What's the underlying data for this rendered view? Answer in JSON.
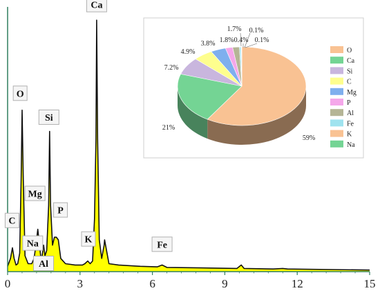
{
  "chart_data": [
    {
      "type": "line",
      "xlim": [
        0,
        15
      ],
      "ylim": [
        0,
        100
      ],
      "x_ticks": [
        "0",
        "3",
        "6",
        "9",
        "12",
        "15"
      ],
      "series_color": "#ffff00",
      "outline_color": "#111111",
      "axis_color": "#2f7f5f",
      "spectrum": [
        [
          0,
          2
        ],
        [
          0.12,
          5
        ],
        [
          0.2,
          9
        ],
        [
          0.27,
          5
        ],
        [
          0.35,
          2.5
        ],
        [
          0.42,
          3
        ],
        [
          0.5,
          7
        ],
        [
          0.56,
          35
        ],
        [
          0.6,
          61
        ],
        [
          0.65,
          35
        ],
        [
          0.72,
          6
        ],
        [
          0.85,
          3
        ],
        [
          1.0,
          3
        ],
        [
          1.1,
          5
        ],
        [
          1.2,
          12
        ],
        [
          1.25,
          16
        ],
        [
          1.3,
          12
        ],
        [
          1.38,
          5
        ],
        [
          1.43,
          6
        ],
        [
          1.49,
          10
        ],
        [
          1.55,
          6
        ],
        [
          1.62,
          8
        ],
        [
          1.7,
          25
        ],
        [
          1.74,
          53
        ],
        [
          1.78,
          25
        ],
        [
          1.86,
          10
        ],
        [
          1.94,
          13
        ],
        [
          2.02,
          13
        ],
        [
          2.1,
          12
        ],
        [
          2.2,
          5
        ],
        [
          2.4,
          3
        ],
        [
          2.8,
          2.5
        ],
        [
          3.1,
          2.5
        ],
        [
          3.2,
          3
        ],
        [
          3.32,
          4
        ],
        [
          3.42,
          3
        ],
        [
          3.52,
          4
        ],
        [
          3.6,
          20
        ],
        [
          3.66,
          50
        ],
        [
          3.69,
          95
        ],
        [
          3.73,
          50
        ],
        [
          3.8,
          12
        ],
        [
          3.9,
          5
        ],
        [
          4.0,
          10
        ],
        [
          4.02,
          12
        ],
        [
          4.1,
          8
        ],
        [
          4.2,
          3
        ],
        [
          4.6,
          2.5
        ],
        [
          5.5,
          2
        ],
        [
          6.2,
          1.8
        ],
        [
          6.4,
          2.5
        ],
        [
          6.6,
          1.6
        ],
        [
          8,
          1.4
        ],
        [
          9.5,
          1.2
        ],
        [
          9.68,
          2.5
        ],
        [
          9.8,
          1.2
        ],
        [
          11,
          1
        ],
        [
          11.4,
          1.2
        ],
        [
          11.6,
          1
        ],
        [
          15,
          0.6
        ]
      ],
      "peaks": [
        {
          "label": "Ca",
          "x": 3.69,
          "y": 95
        },
        {
          "label": "O",
          "x": 0.52,
          "y": 61
        },
        {
          "label": "Si",
          "x": 1.74,
          "y": 53
        },
        {
          "label": "Mg",
          "x": 1.25,
          "y": 25
        },
        {
          "label": "P",
          "x": 2.02,
          "y": 19
        },
        {
          "label": "C",
          "x": 0.27,
          "y": 14
        },
        {
          "label": "Na",
          "x": 1.04,
          "y": 7
        },
        {
          "label": "Al",
          "x": 1.49,
          "y": 3
        },
        {
          "label": "K",
          "x": 3.32,
          "y": 7
        },
        {
          "label": "Fe",
          "x": 6.4,
          "y": 5
        }
      ]
    },
    {
      "type": "pie",
      "slices": [
        {
          "label": "O",
          "value": 59,
          "text": "59%",
          "color": "#f9c293"
        },
        {
          "label": "Ca",
          "value": 21,
          "text": "21%",
          "color": "#74d494"
        },
        {
          "label": "Si",
          "value": 7.2,
          "text": "7.2%",
          "color": "#c9b6de"
        },
        {
          "label": "C",
          "value": 4.9,
          "text": "4.9%",
          "color": "#fefe8e"
        },
        {
          "label": "Mg",
          "value": 3.8,
          "text": "3.8%",
          "color": "#7fafee"
        },
        {
          "label": "P",
          "value": 1.8,
          "text": "1.8%",
          "color": "#f5a7ea"
        },
        {
          "label": "Al",
          "value": 1.7,
          "text": "1.7%",
          "color": "#b5b596"
        },
        {
          "label": "Fe",
          "value": 0.4,
          "text": "0.4%",
          "color": "#9fe3ef"
        },
        {
          "label": "K",
          "value": 0.1,
          "text": "0.1%",
          "color": "#f9c293"
        },
        {
          "label": "Na",
          "value": 0.1,
          "text": "0.1%",
          "color": "#74d494"
        }
      ],
      "legend_position": "right"
    }
  ]
}
